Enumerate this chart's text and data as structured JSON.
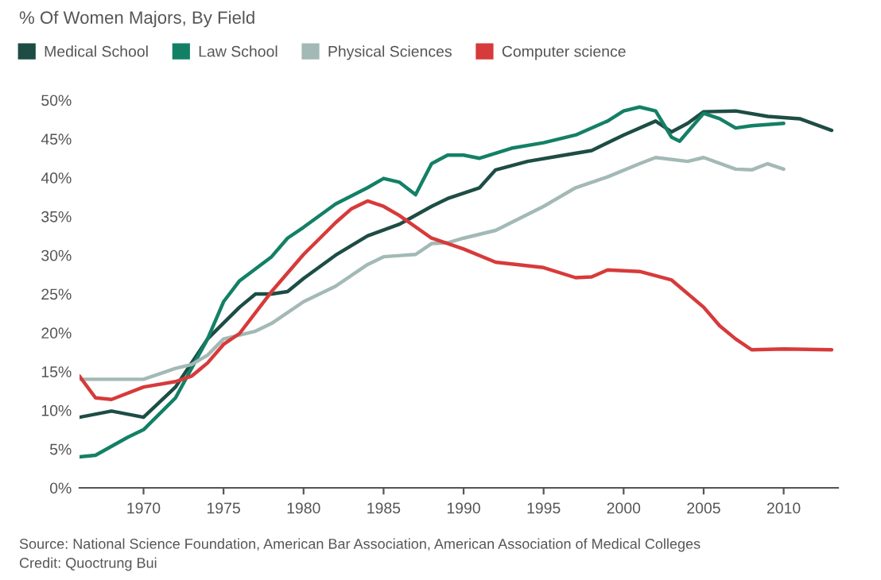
{
  "chart_data": {
    "type": "line",
    "title": "% Of Women Majors, By Field",
    "xlim": [
      1966,
      2013.4
    ],
    "xticks": [
      1970,
      1975,
      1980,
      1985,
      1990,
      1995,
      2000,
      2005,
      2010
    ],
    "ylim": [
      0,
      50
    ],
    "yticks": [
      {
        "value": 0,
        "label": "0%"
      },
      {
        "value": 5,
        "label": "5%"
      },
      {
        "value": 10,
        "label": "10%"
      },
      {
        "value": 15,
        "label": "15%"
      },
      {
        "value": 20,
        "label": "20%"
      },
      {
        "value": 25,
        "label": "25%"
      },
      {
        "value": 30,
        "label": "30%"
      },
      {
        "value": 35,
        "label": "35%"
      },
      {
        "value": 40,
        "label": "40%"
      },
      {
        "value": 45,
        "label": "45%"
      },
      {
        "value": 50,
        "label": "50%"
      }
    ],
    "grid": false,
    "legend": "top left",
    "marker": "none",
    "line_style": "solid",
    "series": [
      {
        "name": "Medical School",
        "color": "#1d4d45",
        "x": [
          1966,
          1968,
          1970,
          1972,
          1974,
          1976,
          1977,
          1978,
          1979,
          1980,
          1982,
          1984,
          1986,
          1988,
          1989,
          1990,
          1991,
          1992,
          1994,
          1996,
          1998,
          2000,
          2002,
          2003,
          2004,
          2005,
          2007,
          2009,
          2011,
          2013
        ],
        "values": [
          9.1,
          9.9,
          9.1,
          13,
          19.2,
          23.3,
          25,
          25,
          25.3,
          27,
          30,
          32.5,
          34,
          36.3,
          37.3,
          38,
          38.7,
          41,
          42.1,
          42.8,
          43.5,
          45.5,
          47.3,
          45.9,
          47,
          48.5,
          48.6,
          47.9,
          47.6,
          46.1
        ]
      },
      {
        "name": "Law School",
        "color": "#138066",
        "x": [
          1966,
          1967,
          1969,
          1970,
          1972,
          1974,
          1975,
          1976,
          1978,
          1979,
          1980,
          1982,
          1984,
          1985,
          1986,
          1987,
          1988,
          1989,
          1990,
          1991,
          1993,
          1995,
          1997,
          1999,
          2000,
          2001,
          2002,
          2003,
          2003.5,
          2005,
          2006,
          2007,
          2008,
          2010
        ],
        "values": [
          4,
          4.2,
          6.5,
          7.5,
          11.6,
          19.2,
          24,
          26.7,
          29.8,
          32.2,
          33.6,
          36.6,
          38.7,
          39.9,
          39.4,
          37.8,
          41.8,
          42.9,
          42.9,
          42.5,
          43.8,
          44.5,
          45.5,
          47.3,
          48.6,
          49.1,
          48.6,
          45.2,
          44.7,
          48.3,
          47.6,
          46.4,
          46.7,
          47
        ]
      },
      {
        "name": "Physical Sciences",
        "color": "#a3b9b6",
        "x": [
          1966,
          1970,
          1972,
          1973,
          1974,
          1975,
          1977,
          1978,
          1980,
          1982,
          1984,
          1985,
          1987,
          1988,
          1989,
          1990,
          1992,
          1995,
          1997,
          1999,
          2001,
          2002,
          2004,
          2005,
          2007,
          2008,
          2009,
          2010
        ],
        "values": [
          14,
          14,
          15.4,
          15.9,
          17.1,
          19.2,
          20.2,
          21.2,
          24,
          26,
          28.8,
          29.8,
          30.1,
          31.5,
          31.6,
          32.2,
          33.2,
          36.3,
          38.7,
          40.1,
          41.8,
          42.6,
          42.1,
          42.6,
          41.1,
          41,
          41.8,
          41.1
        ]
      },
      {
        "name": "Computer science",
        "color": "#d73a3a",
        "x": [
          1966,
          1967,
          1968,
          1970,
          1972,
          1973,
          1974,
          1975,
          1976,
          1978,
          1980,
          1982,
          1983,
          1984,
          1985,
          1986,
          1988,
          1990,
          1992,
          1995,
          1997,
          1998,
          1999,
          2001,
          2003,
          2005,
          2006,
          2007,
          2008,
          2010,
          2013
        ],
        "values": [
          14.4,
          11.6,
          11.4,
          13,
          13.7,
          14.4,
          16.1,
          18.5,
          19.9,
          25.3,
          30.1,
          34.2,
          36,
          37,
          36.3,
          35.1,
          32.2,
          30.8,
          29.1,
          28.4,
          27.1,
          27.2,
          28.1,
          27.9,
          26.8,
          23.3,
          20.9,
          19.2,
          17.8,
          17.9,
          17.8
        ]
      }
    ],
    "annotations": [
      "Source: National Science Foundation, American Bar Association, American Association of Medical Colleges",
      "Credit: Quoctrung Bui"
    ]
  }
}
